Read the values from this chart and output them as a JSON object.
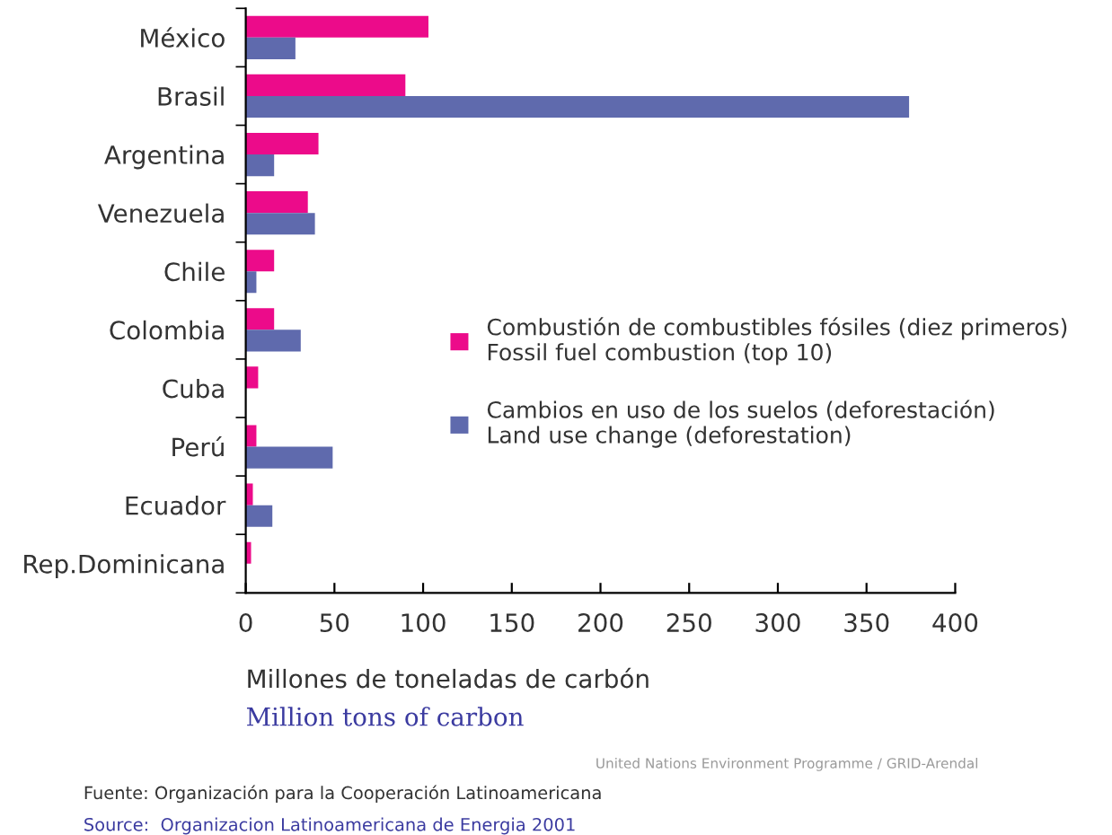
{
  "chart_data": {
    "type": "bar",
    "orientation": "horizontal",
    "categories": [
      "México",
      "Brasil",
      "Argentina",
      "Venezuela",
      "Chile",
      "Colombia",
      "Cuba",
      "Perú",
      "Ecuador",
      "Rep.Dominicana"
    ],
    "series": [
      {
        "name": "Combustión de combustibles fósiles (diez primeros)\nFossil fuel combustion (top 10)",
        "color": "#ec0b8a",
        "values": [
          103,
          90,
          41,
          35,
          16,
          16,
          7,
          6,
          4,
          3
        ]
      },
      {
        "name": "Cambios en uso de los suelos (deforestación)\nLand use change (deforestation)",
        "color": "#5f6aad",
        "values": [
          28,
          374,
          16,
          39,
          6,
          31,
          null,
          49,
          15,
          null
        ]
      }
    ],
    "xlabel": "Millones de toneladas de carbón\nMillion tons of carbon",
    "xlim": [
      0,
      400
    ],
    "xticks": [
      0,
      50,
      100,
      150,
      200,
      250,
      300,
      350,
      400
    ],
    "legend": "right",
    "grid": false,
    "annotations": [
      "United Nations Environment Programme / GRID-Arendal",
      "Fuente: Organización para la Cooperación Latinoamericana",
      "Source:  Organizacion Latinoamericana de Energia 2001"
    ]
  }
}
